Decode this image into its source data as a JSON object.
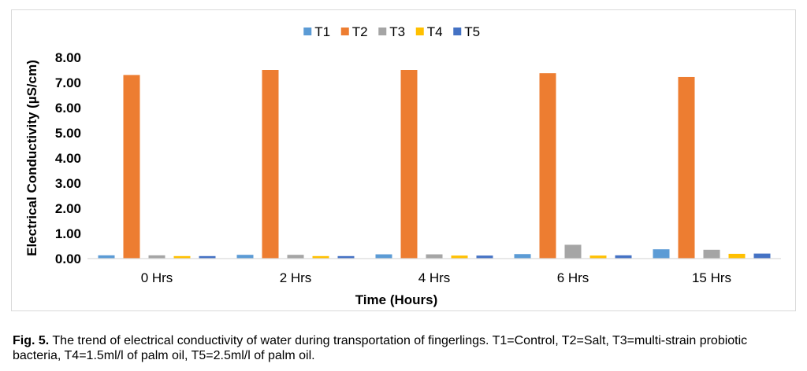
{
  "chart_data": {
    "type": "bar",
    "title": "",
    "xlabel": "Time (Hours)",
    "ylabel": "Electrical Conductivity (µS/cm)",
    "ylim": [
      0,
      8
    ],
    "yticks": [
      "0.00",
      "1.00",
      "2.00",
      "3.00",
      "4.00",
      "5.00",
      "6.00",
      "7.00",
      "8.00"
    ],
    "grid": false,
    "legend_position": "top-center",
    "categories": [
      "0 Hrs",
      "2 Hrs",
      "4 Hrs",
      "6 Hrs",
      "15 Hrs"
    ],
    "series": [
      {
        "name": "T1",
        "color": "#5b9bd5",
        "values": [
          0.13,
          0.15,
          0.17,
          0.18,
          0.37
        ]
      },
      {
        "name": "T2",
        "color": "#ed7d31",
        "values": [
          7.3,
          7.5,
          7.5,
          7.37,
          7.22
        ]
      },
      {
        "name": "T3",
        "color": "#a5a5a5",
        "values": [
          0.13,
          0.15,
          0.17,
          0.55,
          0.35
        ]
      },
      {
        "name": "T4",
        "color": "#ffc000",
        "values": [
          0.1,
          0.1,
          0.12,
          0.12,
          0.19
        ]
      },
      {
        "name": "T5",
        "color": "#4472c4",
        "values": [
          0.1,
          0.1,
          0.12,
          0.13,
          0.2
        ]
      }
    ]
  },
  "caption": {
    "label": "Fig. 5.",
    "text": " The trend of electrical conductivity of water during transportation of fingerlings. T1=Control, T2=Salt, T3=multi-strain probiotic bacteria, T4=1.5ml/l of palm oil, T5=2.5ml/l of palm oil."
  }
}
